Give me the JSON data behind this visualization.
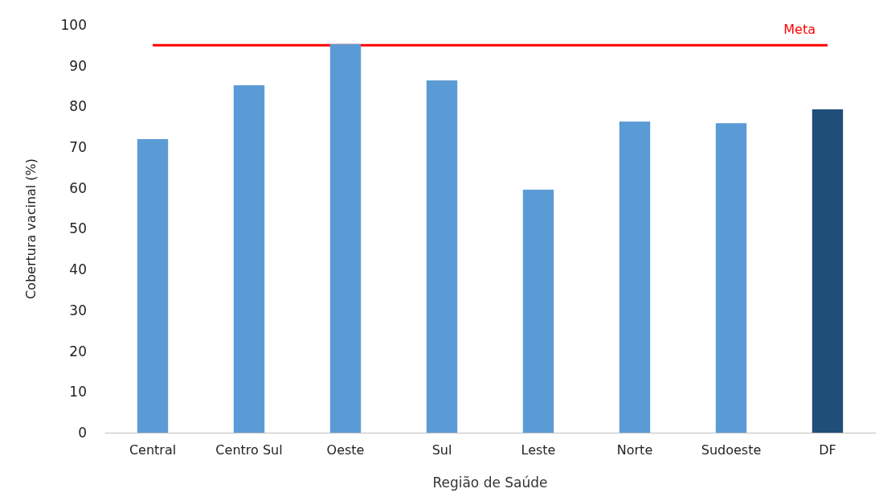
{
  "chart_data": {
    "type": "bar",
    "xlabel": "Região de Saúde",
    "ylabel": "Cobertura vacinal (%)",
    "categories": [
      "Central",
      "Centro Sul",
      "Oeste",
      "Sul",
      "Leste",
      "Norte",
      "Sudoeste",
      "DF"
    ],
    "values": [
      72.0,
      85.2,
      95.3,
      86.4,
      59.6,
      76.3,
      75.9,
      79.3
    ],
    "colors": [
      "#5b9bd5",
      "#5b9bd5",
      "#5b9bd5",
      "#5b9bd5",
      "#5b9bd5",
      "#5b9bd5",
      "#5b9bd5",
      "#1f4e79"
    ],
    "ylim": [
      0,
      100
    ],
    "yticks": [
      0,
      10,
      20,
      30,
      40,
      50,
      60,
      70,
      80,
      90,
      100
    ],
    "grid": false,
    "ref_lines": [
      {
        "axis": "y",
        "value": 95,
        "label": "Meta",
        "color": "#ff0000"
      }
    ]
  }
}
